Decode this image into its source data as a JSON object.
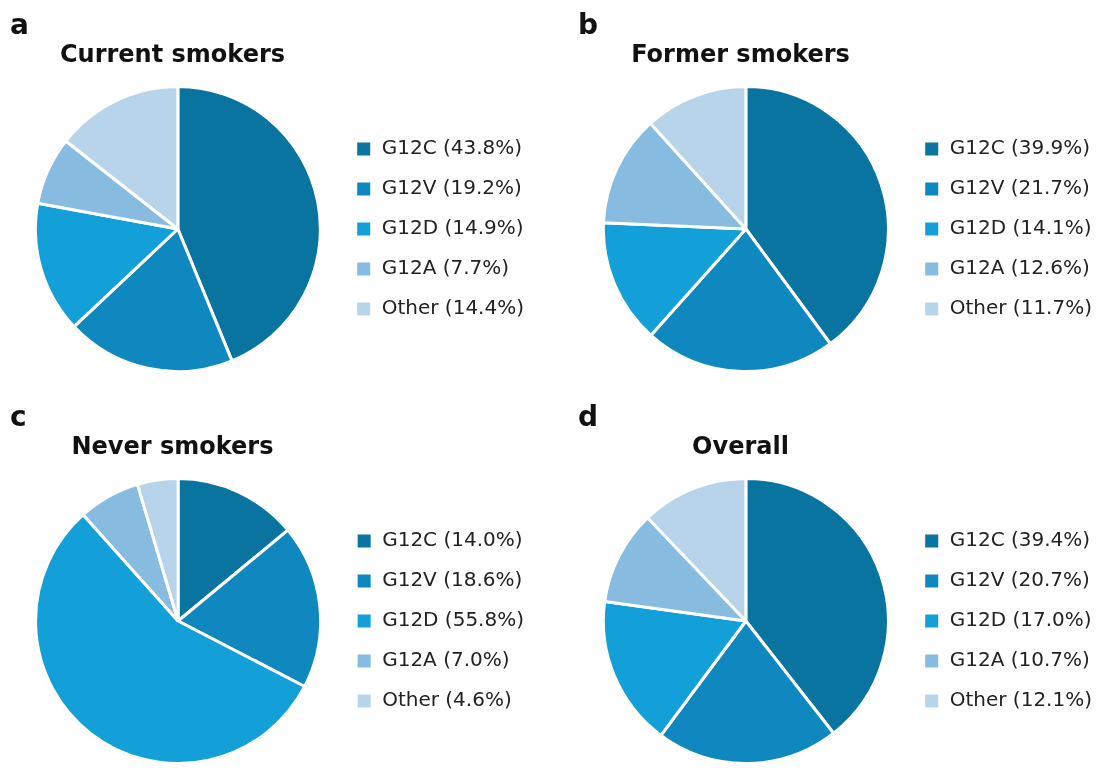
{
  "chart_data": [
    {
      "type": "pie",
      "title": "Current smokers",
      "annotations": [
        "a"
      ],
      "legend": "right",
      "categories": [
        "G12C (43.8%)",
        "G12V (19.2%)",
        "G12D (14.9%)",
        "G12A (7.7%)",
        "Other (14.4%)"
      ],
      "values": [
        43.8,
        19.2,
        14.9,
        7.7,
        14.4
      ],
      "colors": [
        "#0a74a0",
        "#0e88be",
        "#139fd7",
        "#88bbe0",
        "#b8d4ea"
      ]
    },
    {
      "type": "pie",
      "title": "Former smokers",
      "annotations": [
        "b"
      ],
      "legend": "right",
      "categories": [
        "G12C (39.9%)",
        "G12V (21.7%)",
        "G12D (14.1%)",
        "G12A (12.6%)",
        "Other (11.7%)"
      ],
      "values": [
        39.9,
        21.7,
        14.1,
        12.6,
        11.7
      ],
      "colors": [
        "#0a74a0",
        "#0e88be",
        "#139fd7",
        "#88bbe0",
        "#b8d4ea"
      ]
    },
    {
      "type": "pie",
      "title": "Never smokers",
      "annotations": [
        "c"
      ],
      "legend": "right",
      "categories": [
        "G12C (14.0%)",
        "G12V (18.6%)",
        "G12D (55.8%)",
        "G12A (7.0%)",
        "Other (4.6%)"
      ],
      "values": [
        14.0,
        18.6,
        55.8,
        7.0,
        4.6
      ],
      "colors": [
        "#0a74a0",
        "#0e88be",
        "#139fd7",
        "#88bbe0",
        "#b8d4ea"
      ]
    },
    {
      "type": "pie",
      "title": "Overall",
      "annotations": [
        "d"
      ],
      "legend": "right",
      "categories": [
        "G12C (39.4%)",
        "G12V (20.7%)",
        "G12D (17.0%)",
        "G12A (10.7%)",
        "Other (12.1%)"
      ],
      "values": [
        39.4,
        20.7,
        17.0,
        10.7,
        12.1
      ],
      "colors": [
        "#0a74a0",
        "#0e88be",
        "#139fd7",
        "#88bbe0",
        "#b8d4ea"
      ]
    }
  ]
}
